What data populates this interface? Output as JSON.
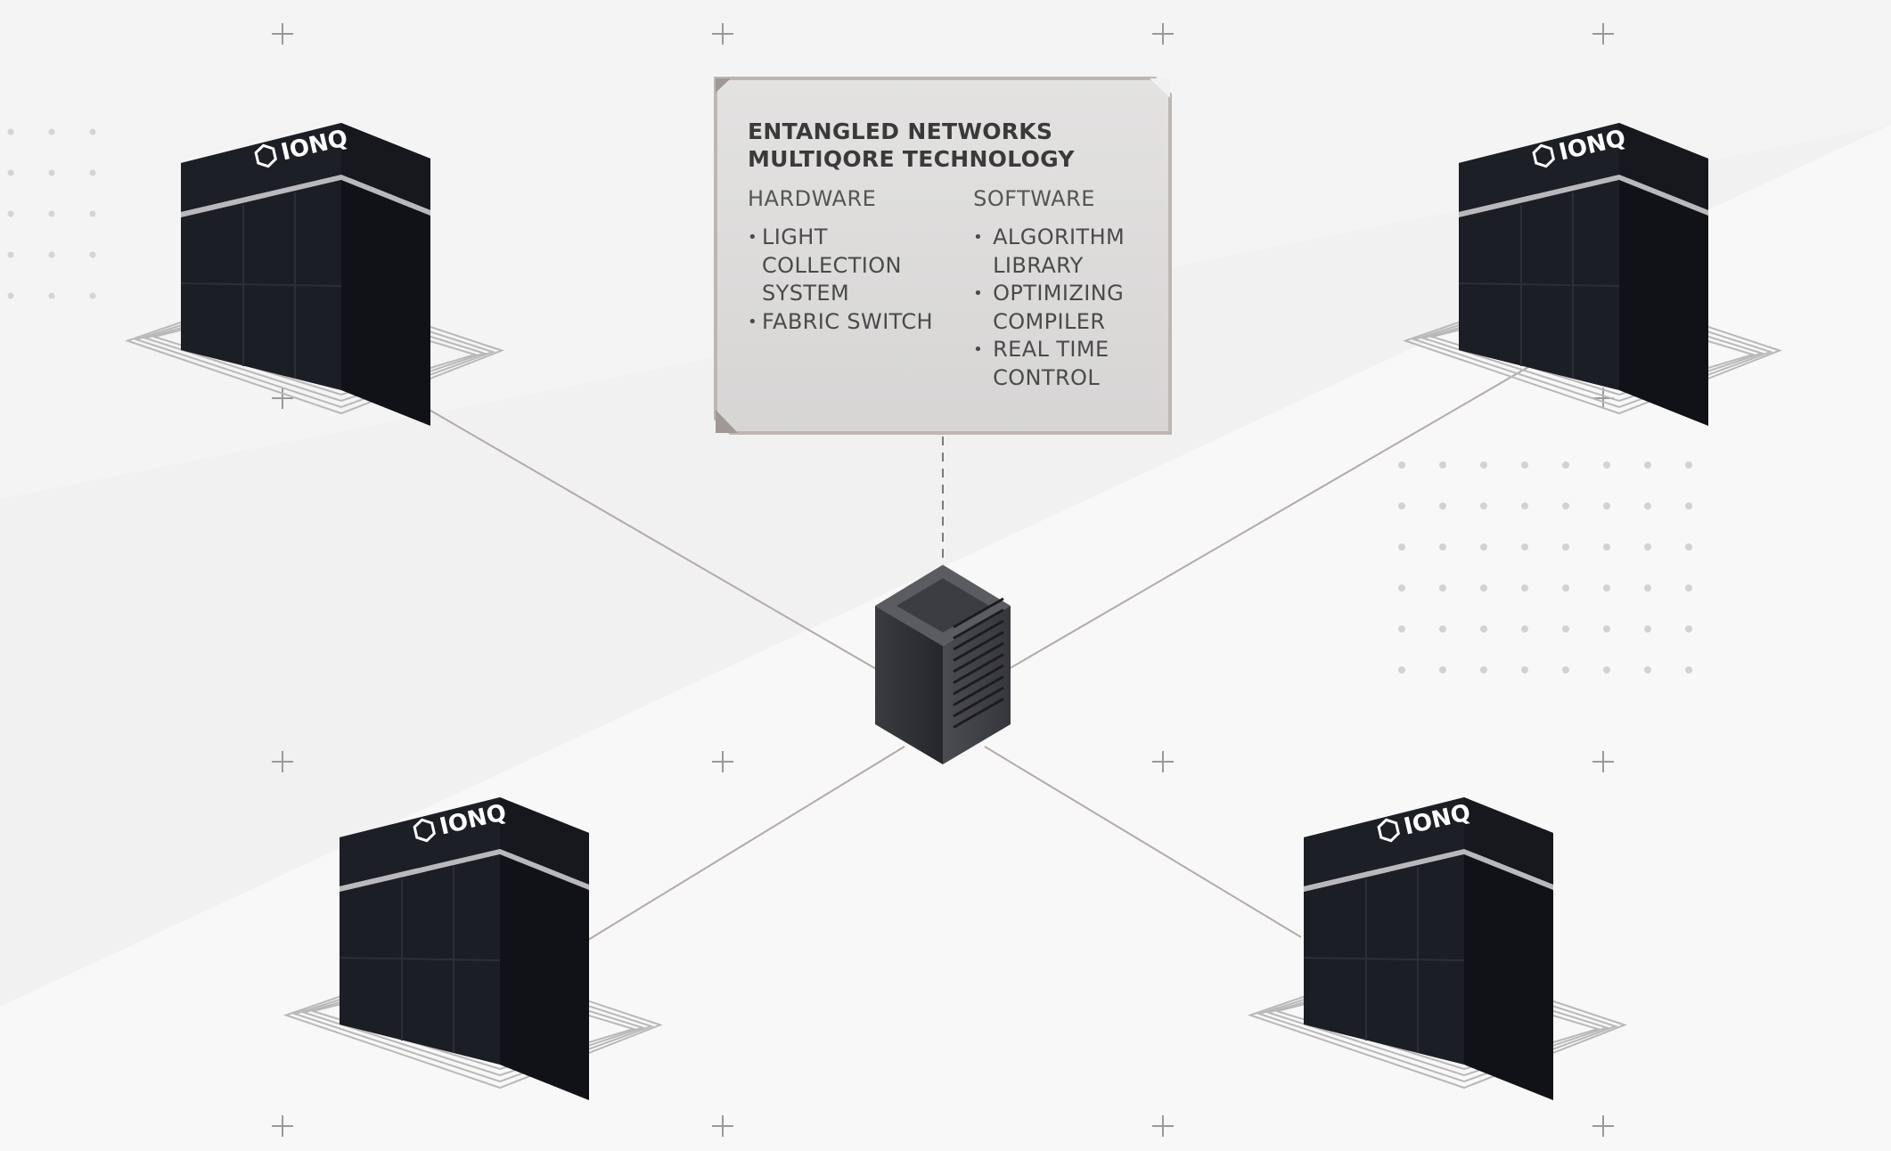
{
  "card": {
    "title_line1": "ENTANGLED NETWORKS",
    "title_line2": "MULTIQORE TECHNOLOGY",
    "hardware": {
      "heading": "HARDWARE",
      "items": [
        "LIGHT COLLECTION SYSTEM",
        "FABRIC SWITCH"
      ]
    },
    "software": {
      "heading": "SOFTWARE",
      "items": [
        "ALGORITHM LIBRARY",
        "OPTIMIZING COMPILER",
        "REAL TIME CONTROL"
      ]
    }
  },
  "quantum_computers": [
    {
      "position": "top-left",
      "logo": "IONQ"
    },
    {
      "position": "top-right",
      "logo": "IONQ"
    },
    {
      "position": "bottom-left",
      "logo": "IONQ"
    },
    {
      "position": "bottom-right",
      "logo": "IONQ"
    }
  ],
  "colors": {
    "background": "#f1f1f1",
    "cabinet": "#1d1f26",
    "cabinet_dark": "#121318",
    "card": "#dddcdc",
    "card_border": "#bdb7b4",
    "link_line": "#b5aaa6"
  }
}
